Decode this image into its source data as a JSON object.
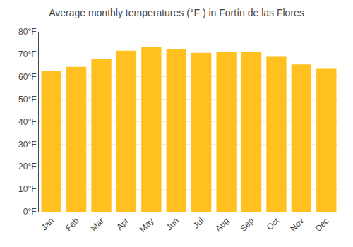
{
  "chart_data": {
    "type": "bar",
    "title": "Average monthly temperatures (°F ) in Fortín de las Flores",
    "categories": [
      "Jan",
      "Feb",
      "Mar",
      "Apr",
      "May",
      "Jun",
      "Jul",
      "Aug",
      "Sep",
      "Oct",
      "Nov",
      "Dec"
    ],
    "values": [
      62.6,
      64.4,
      68.0,
      71.6,
      73.4,
      72.5,
      70.7,
      71.2,
      71.1,
      68.9,
      65.5,
      63.5
    ],
    "color": "#FFC020",
    "ylim": [
      0,
      80
    ],
    "yticks": [
      {
        "value": 0,
        "label": "0°F"
      },
      {
        "value": 10,
        "label": "10°F"
      },
      {
        "value": 20,
        "label": "20°F"
      },
      {
        "value": 30,
        "label": "30°F"
      },
      {
        "value": 40,
        "label": "40°F"
      },
      {
        "value": 50,
        "label": "50°F"
      },
      {
        "value": 60,
        "label": "60°F"
      },
      {
        "value": 70,
        "label": "70°F"
      },
      {
        "value": 80,
        "label": "80°F"
      }
    ],
    "grid": true
  }
}
